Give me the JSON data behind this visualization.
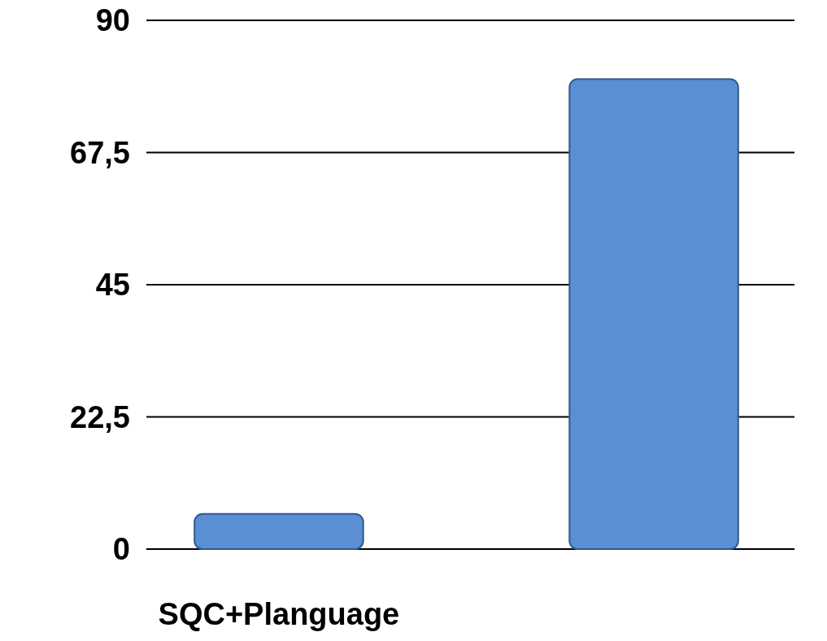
{
  "chart_data": {
    "type": "bar",
    "categories": [
      "SQC+Planguage",
      null
    ],
    "values": [
      6,
      80
    ],
    "color": "#5b8fd3",
    "ylim": [
      0,
      90
    ],
    "yticks": [
      0,
      {
        "value": 22.5,
        "label": "22,5"
      },
      45,
      {
        "value": 67.5,
        "label": "67,5"
      },
      90
    ],
    "grid": "y"
  }
}
